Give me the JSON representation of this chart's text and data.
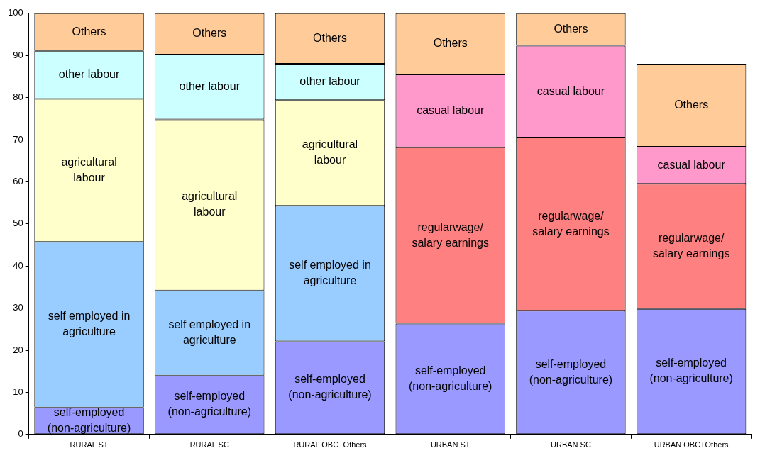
{
  "chart_data": {
    "type": "bar",
    "stacked": true,
    "categories": [
      "RURAL ST",
      "RURAL SC",
      "RURAL OBC+Others",
      "URBAN ST",
      "URBAN SC",
      "URBAN OBC+Others"
    ],
    "series": [
      {
        "name": "self-employed (non-agriculture)",
        "color": "#9999ff",
        "values": [
          6.4,
          14.0,
          22.1,
          26.3,
          29.4,
          29.8
        ]
      },
      {
        "name": "self employed in agriculture",
        "color": "#99ccff",
        "values": [
          39.3,
          20.2,
          32.2,
          null,
          null,
          null
        ]
      },
      {
        "name": "agricultural labour",
        "color": "#ffffcc",
        "values": [
          34.0,
          40.6,
          25.1,
          null,
          null,
          null
        ]
      },
      {
        "name": "other labour",
        "color": "#ccffff",
        "values": [
          11.4,
          15.4,
          8.6,
          null,
          null,
          null
        ]
      },
      {
        "name": "regularwage/ salary earnings",
        "color": "#ff8080",
        "values": [
          null,
          null,
          null,
          41.9,
          41.1,
          29.7
        ]
      },
      {
        "name": "casual labour",
        "color": "#ff99cc",
        "values": [
          null,
          null,
          null,
          17.3,
          21.8,
          8.8
        ]
      },
      {
        "name": "Others",
        "color": "#ffcc99",
        "values": [
          8.9,
          9.8,
          12.0,
          14.5,
          7.7,
          19.7
        ]
      }
    ],
    "ylim": [
      0,
      100
    ],
    "yticks": [
      0,
      10,
      20,
      30,
      40,
      50,
      60,
      70,
      80,
      90,
      100
    ],
    "grid": false,
    "legend": false
  }
}
